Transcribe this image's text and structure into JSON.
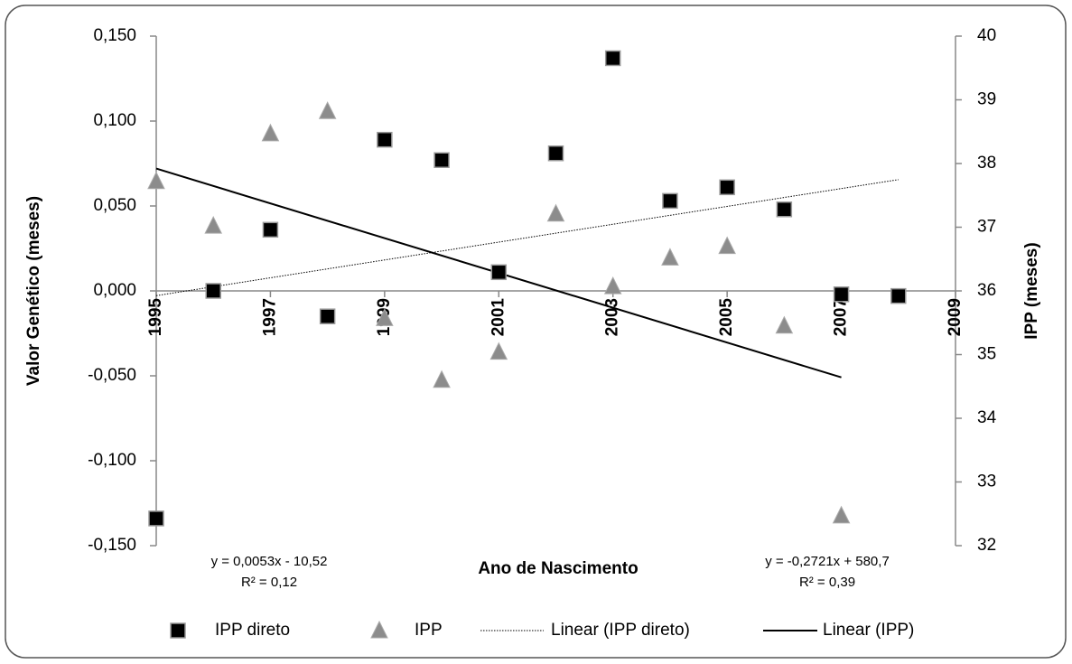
{
  "chart_data": {
    "type": "scatter",
    "x_label": "Ano de Nascimento",
    "y_label": "Valor Genético (meses)",
    "y2_label": "IPP (meses)",
    "x": [
      1995,
      1996,
      1997,
      1998,
      1999,
      2000,
      2001,
      2002,
      2003,
      2004,
      2005,
      2006,
      2007,
      2008
    ],
    "xlim": [
      1995,
      2009
    ],
    "xticks": [
      1995,
      1997,
      1999,
      2001,
      2003,
      2005,
      2007,
      2009
    ],
    "ylim": [
      -0.15,
      0.15
    ],
    "yticks": [
      {
        "value": -0.15,
        "label": "-0,150"
      },
      {
        "value": -0.1,
        "label": "-0,100"
      },
      {
        "value": -0.05,
        "label": "-0,050"
      },
      {
        "value": 0,
        "label": "0,000"
      },
      {
        "value": 0.05,
        "label": "0,050"
      },
      {
        "value": 0.1,
        "label": "0,100"
      },
      {
        "value": 0.15,
        "label": "0,150"
      }
    ],
    "y2lim": [
      32,
      40
    ],
    "y2ticks": [
      32,
      33,
      34,
      35,
      36,
      37,
      38,
      39,
      40
    ],
    "series": [
      {
        "name": "IPP direto",
        "color": "#000000",
        "marker": "square",
        "values": [
          -0.134,
          0.0,
          0.036,
          -0.015,
          0.089,
          0.077,
          0.011,
          0.081,
          0.137,
          0.053,
          0.061,
          0.048,
          -0.002,
          -0.003
        ],
        "trendline": {
          "name": "Linear (IPP direto)",
          "style": "dotted",
          "equation": "y = 0,0053x - 10,52",
          "r2": "R² = 0,12"
        }
      },
      {
        "name": "IPP",
        "color": "#8c8c8c",
        "marker": "triangle",
        "axis": "y2",
        "values": [
          37.72,
          37.02,
          38.47,
          38.82,
          35.57,
          34.6,
          35.04,
          37.21,
          36.07,
          36.52,
          36.7,
          35.45,
          32.47,
          null
        ],
        "trendline": {
          "name": "Linear (IPP)",
          "style": "solid",
          "equation": "y = -0,2721x + 580,7",
          "r2": "R² = 0,39"
        }
      }
    ]
  }
}
